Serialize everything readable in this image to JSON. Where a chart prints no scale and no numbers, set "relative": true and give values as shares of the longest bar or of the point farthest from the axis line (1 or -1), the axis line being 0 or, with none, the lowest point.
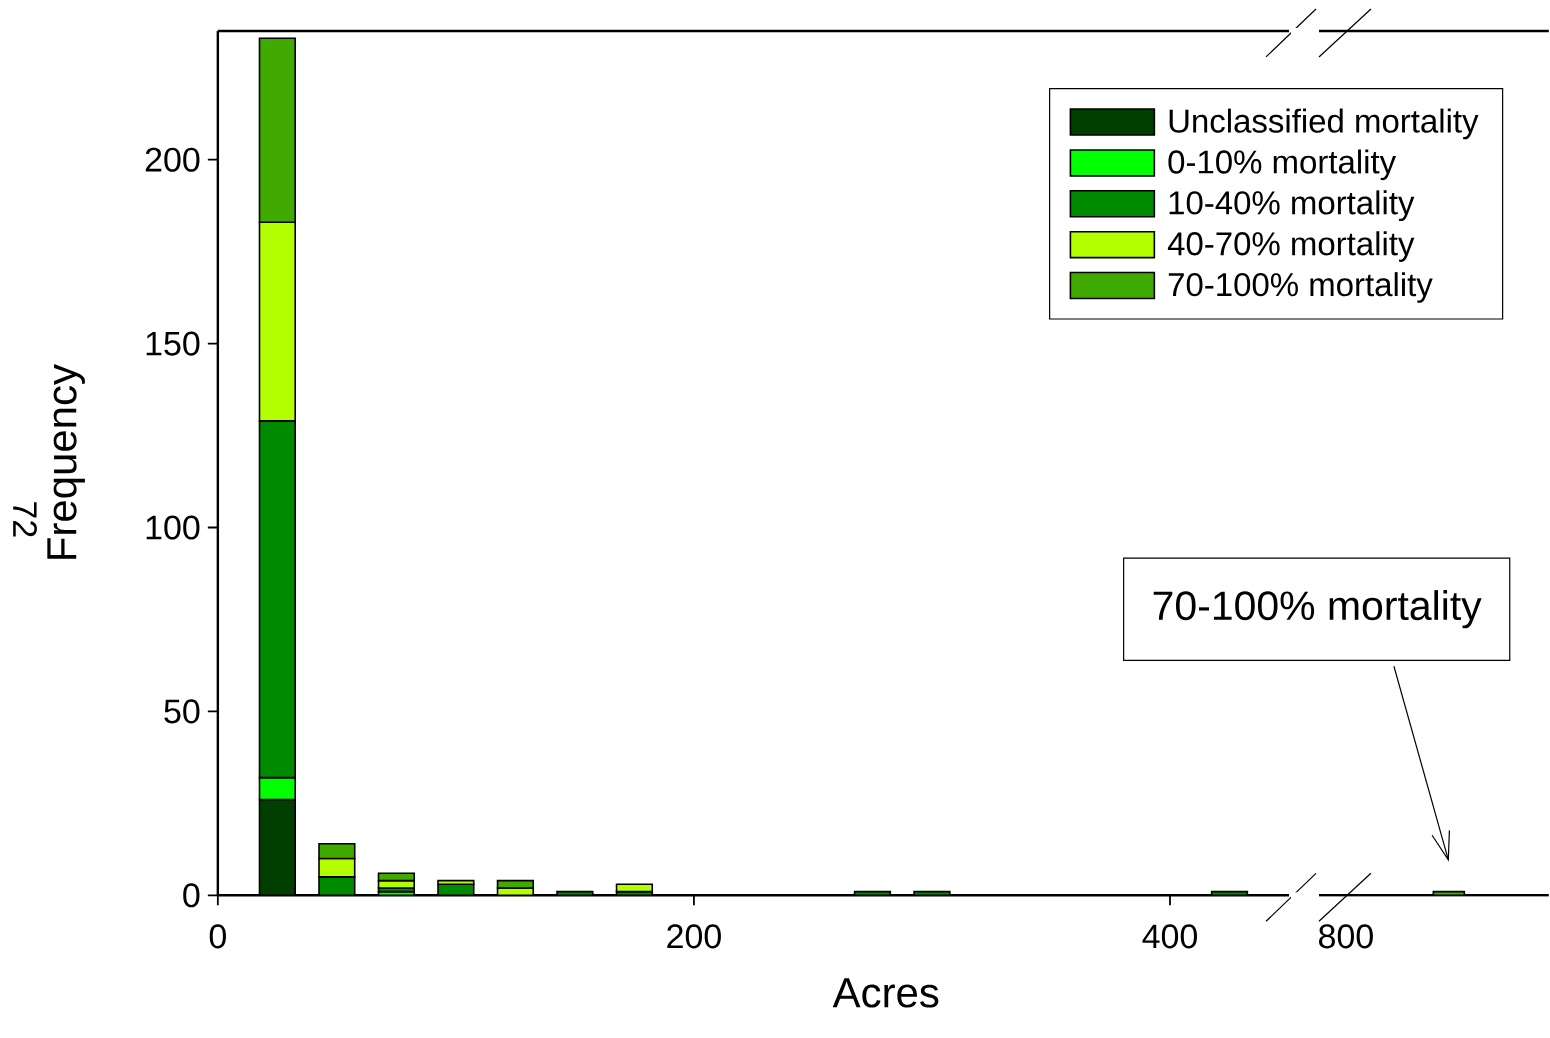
{
  "chart_data": [
    {
      "type": "bar",
      "stacked": true,
      "xlabel": "Acres",
      "ylabel": "Frequency",
      "xlim": [
        0,
        450
      ],
      "ylim": [
        0,
        235
      ],
      "xticks": [
        0,
        200,
        400
      ],
      "yticks": [
        0,
        50,
        100,
        150,
        200
      ],
      "x": [
        25,
        50,
        75,
        100,
        125,
        150,
        175,
        275,
        300,
        425
      ],
      "annotations": [
        "72"
      ],
      "legend": "top right",
      "series": [
        {
          "name": "Unclassified mortality",
          "color": "#003f00",
          "values": [
            26,
            null,
            null,
            null,
            null,
            null,
            null,
            null,
            null,
            null
          ]
        },
        {
          "name": "0-10% mortality",
          "color": "#00ff00",
          "values": [
            6,
            null,
            1,
            null,
            null,
            null,
            null,
            null,
            null,
            null
          ]
        },
        {
          "name": "10-40% mortality",
          "color": "#008a00",
          "values": [
            97,
            5,
            1,
            3,
            null,
            1,
            1,
            1,
            1,
            1
          ]
        },
        {
          "name": "40-70% mortality",
          "color": "#b3ff00",
          "values": [
            54,
            5,
            2,
            1,
            2,
            null,
            2,
            null,
            null,
            null
          ]
        },
        {
          "name": "70-100% mortality",
          "color": "#40aa00",
          "values": [
            50,
            4,
            2,
            null,
            2,
            null,
            null,
            null,
            null,
            null
          ]
        }
      ]
    },
    {
      "type": "bar",
      "stacked": true,
      "relative": true,
      "categories": [
        null
      ],
      "tick_labels": false,
      "annotations": [
        "800",
        "70-100% mortality"
      ],
      "series": [
        {
          "color": "#40aa00",
          "values": [
            1
          ]
        }
      ]
    }
  ]
}
